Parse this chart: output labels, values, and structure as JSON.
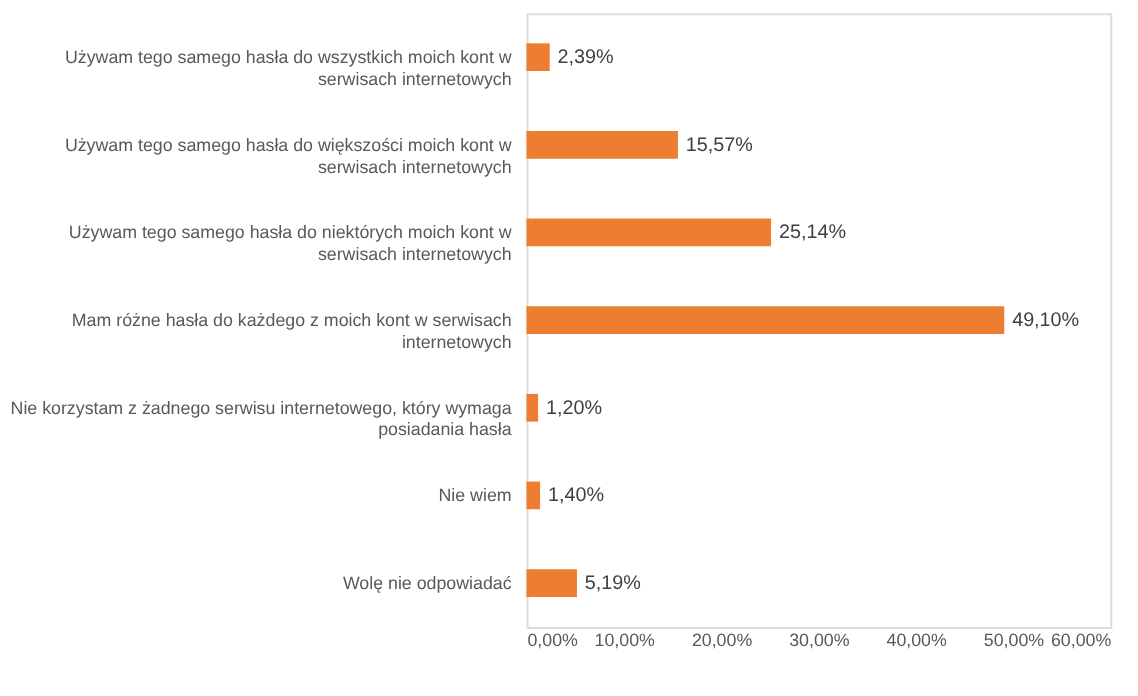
{
  "chart_data": {
    "type": "bar",
    "orientation": "horizontal",
    "categories": [
      "Używam tego samego hasła do wszystkich moich kont w serwisach internetowych",
      "Używam tego samego hasła do większości moich kont w serwisach internetowych",
      "Używam tego samego hasła do niektórych moich kont w serwisach internetowych",
      "Mam różne hasła do każdego z moich kont w serwisach internetowych",
      "Nie korzystam z żadnego serwisu internetowego, który wymaga posiadania hasła",
      "Nie wiem",
      "Wolę nie odpowiadać"
    ],
    "values": [
      2.39,
      15.57,
      25.14,
      49.1,
      1.2,
      1.4,
      5.19
    ],
    "value_labels": [
      "2,39%",
      "15,57%",
      "25,14%",
      "49,10%",
      "1,20%",
      "1,40%",
      "5,19%"
    ],
    "color": "#ed7d31",
    "xlim": [
      0,
      60
    ],
    "xticks": [
      {
        "value": 0,
        "label": "0,00%"
      },
      {
        "value": 10,
        "label": "10,00%"
      },
      {
        "value": 20,
        "label": "20,00%"
      },
      {
        "value": 30,
        "label": "30,00%"
      },
      {
        "value": 40,
        "label": "40,00%"
      },
      {
        "value": 50,
        "label": "50,00%"
      },
      {
        "value": 60,
        "label": "60,00%"
      }
    ],
    "grid": false
  }
}
